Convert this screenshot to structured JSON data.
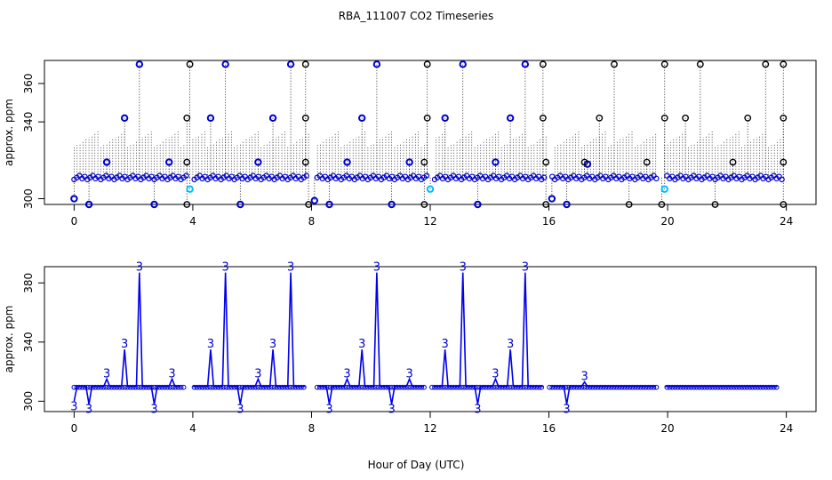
{
  "chart_data": {
    "title": "RBA_111007  CO2 Timeseries",
    "xlabel": "Hour of Day (UTC)",
    "xlim": [
      -1,
      25
    ],
    "x_ticks": [
      0,
      4,
      8,
      12,
      16,
      20,
      24
    ],
    "panels": [
      {
        "type": "scatter",
        "ylabel": "approx. ppm",
        "ylim": [
          297,
          372
        ],
        "y_ticks": [
          300,
          340,
          360
        ],
        "y_tick_labels": [
          "300",
          "340",
          "360"
        ],
        "baseline": 311,
        "baseline_start": 0.0,
        "baseline_end": 23.9,
        "gaps": [
          [
            3.8,
            4.0
          ],
          [
            7.9,
            8.1
          ],
          [
            11.9,
            12.1
          ],
          [
            15.9,
            16.1
          ],
          [
            19.7,
            19.9
          ]
        ],
        "outliers_blue": [
          {
            "x": 0.0,
            "y": 300
          },
          {
            "x": 0.5,
            "y": 297
          },
          {
            "x": 1.1,
            "y": 319
          },
          {
            "x": 1.7,
            "y": 342
          },
          {
            "x": 2.2,
            "y": 370
          },
          {
            "x": 2.7,
            "y": 297
          },
          {
            "x": 3.2,
            "y": 319
          },
          {
            "x": 3.9,
            "y": 305
          },
          {
            "x": 4.6,
            "y": 342
          },
          {
            "x": 5.1,
            "y": 370
          },
          {
            "x": 5.6,
            "y": 297
          },
          {
            "x": 6.2,
            "y": 319
          },
          {
            "x": 6.7,
            "y": 342
          },
          {
            "x": 7.3,
            "y": 370
          },
          {
            "x": 8.1,
            "y": 299
          },
          {
            "x": 8.6,
            "y": 297
          },
          {
            "x": 9.2,
            "y": 319
          },
          {
            "x": 9.7,
            "y": 342
          },
          {
            "x": 10.2,
            "y": 370
          },
          {
            "x": 10.7,
            "y": 297
          },
          {
            "x": 11.3,
            "y": 319
          },
          {
            "x": 12.0,
            "y": 305
          },
          {
            "x": 12.5,
            "y": 342
          },
          {
            "x": 13.1,
            "y": 370
          },
          {
            "x": 13.6,
            "y": 297
          },
          {
            "x": 14.2,
            "y": 319
          },
          {
            "x": 14.7,
            "y": 342
          },
          {
            "x": 15.2,
            "y": 370
          },
          {
            "x": 16.1,
            "y": 300
          },
          {
            "x": 16.6,
            "y": 297
          },
          {
            "x": 17.3,
            "y": 318
          },
          {
            "x": 19.9,
            "y": 305
          }
        ],
        "outliers_black": [
          {
            "x": 3.8,
            "y": 297
          },
          {
            "x": 3.8,
            "y": 319
          },
          {
            "x": 3.8,
            "y": 342
          },
          {
            "x": 3.9,
            "y": 370
          },
          {
            "x": 7.8,
            "y": 370
          },
          {
            "x": 7.8,
            "y": 342
          },
          {
            "x": 7.8,
            "y": 319
          },
          {
            "x": 7.9,
            "y": 297
          },
          {
            "x": 11.8,
            "y": 297
          },
          {
            "x": 11.8,
            "y": 319
          },
          {
            "x": 11.9,
            "y": 342
          },
          {
            "x": 11.9,
            "y": 370
          },
          {
            "x": 15.8,
            "y": 370
          },
          {
            "x": 15.8,
            "y": 342
          },
          {
            "x": 15.9,
            "y": 319
          },
          {
            "x": 15.9,
            "y": 297
          },
          {
            "x": 17.2,
            "y": 319
          },
          {
            "x": 17.7,
            "y": 342
          },
          {
            "x": 18.2,
            "y": 370
          },
          {
            "x": 18.7,
            "y": 297
          },
          {
            "x": 19.3,
            "y": 319
          },
          {
            "x": 19.8,
            "y": 297
          },
          {
            "x": 19.9,
            "y": 342
          },
          {
            "x": 19.9,
            "y": 370
          },
          {
            "x": 20.6,
            "y": 342
          },
          {
            "x": 21.1,
            "y": 370
          },
          {
            "x": 21.6,
            "y": 297
          },
          {
            "x": 22.2,
            "y": 319
          },
          {
            "x": 22.7,
            "y": 342
          },
          {
            "x": 23.3,
            "y": 370
          },
          {
            "x": 23.9,
            "y": 370
          },
          {
            "x": 23.9,
            "y": 342
          },
          {
            "x": 23.9,
            "y": 319
          },
          {
            "x": 23.9,
            "y": 297
          }
        ]
      },
      {
        "type": "line",
        "ylabel": "approx. ppm",
        "ylim": [
          293,
          391
        ],
        "y_ticks": [
          300,
          340,
          380
        ],
        "y_tick_labels": [
          "300",
          "340",
          "380"
        ],
        "baseline": 310,
        "baseline_start": 0.0,
        "baseline_end": 23.7,
        "gaps": [
          [
            3.7,
            4.0
          ],
          [
            7.8,
            8.1
          ],
          [
            11.8,
            12.0
          ],
          [
            15.8,
            16.0
          ],
          [
            19.7,
            19.9
          ]
        ],
        "series": [
          {
            "name": "3",
            "peaks": [
              {
                "x": 0.0,
                "y": 300
              },
              {
                "x": 0.5,
                "y": 298
              },
              {
                "x": 1.1,
                "y": 315
              },
              {
                "x": 1.7,
                "y": 335
              },
              {
                "x": 2.2,
                "y": 387
              },
              {
                "x": 2.7,
                "y": 298
              },
              {
                "x": 3.3,
                "y": 315
              },
              {
                "x": 4.6,
                "y": 335
              },
              {
                "x": 5.1,
                "y": 387
              },
              {
                "x": 5.6,
                "y": 298
              },
              {
                "x": 6.2,
                "y": 315
              },
              {
                "x": 6.7,
                "y": 335
              },
              {
                "x": 7.3,
                "y": 387
              },
              {
                "x": 8.6,
                "y": 298
              },
              {
                "x": 9.2,
                "y": 315
              },
              {
                "x": 9.7,
                "y": 335
              },
              {
                "x": 10.2,
                "y": 387
              },
              {
                "x": 10.7,
                "y": 298
              },
              {
                "x": 11.3,
                "y": 315
              },
              {
                "x": 12.5,
                "y": 335
              },
              {
                "x": 13.1,
                "y": 387
              },
              {
                "x": 13.6,
                "y": 298
              },
              {
                "x": 14.2,
                "y": 315
              },
              {
                "x": 14.7,
                "y": 335
              },
              {
                "x": 15.2,
                "y": 387
              },
              {
                "x": 16.6,
                "y": 298
              },
              {
                "x": 17.2,
                "y": 313
              }
            ]
          }
        ]
      }
    ]
  }
}
